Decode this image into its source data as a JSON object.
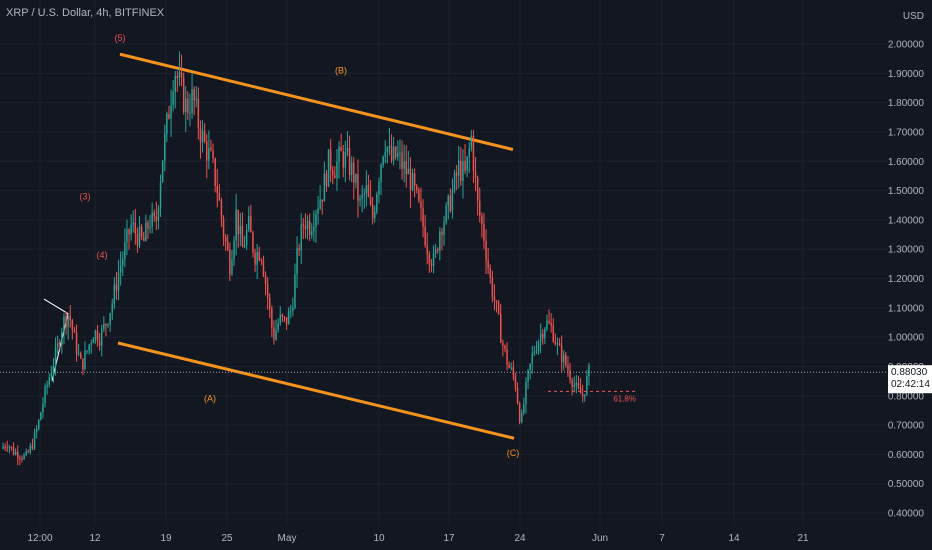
{
  "header": {
    "symbol_title": "XRP / U.S. Dollar, 4h, BITFINEX",
    "currency": "USD"
  },
  "price_badge": {
    "price": "0.88030",
    "countdown": "02:42:14"
  },
  "colors": {
    "background": "#131722",
    "grid": "#1e2230",
    "axis_text": "#b2b5be",
    "up_candle": "#26a69a",
    "down_candle": "#ef5350",
    "channel": "#f7941d",
    "wave_label_red": "#ef5350",
    "wave_label_orange": "#f7941d",
    "price_line": "#9aa0ab"
  },
  "chart_data": {
    "type": "candlestick",
    "title": "XRP / U.S. Dollar, 4h, BITFINEX",
    "ylabel": "USD",
    "ylim": [
      0.34,
      2.1
    ],
    "y_ticks": [
      "2.00000",
      "1.90000",
      "1.80000",
      "1.70000",
      "1.60000",
      "1.50000",
      "1.40000",
      "1.30000",
      "1.20000",
      "1.10000",
      "1.00000",
      "0.90000",
      "0.80000",
      "0.70000",
      "0.60000",
      "0.50000",
      "0.40000"
    ],
    "x_ticks": [
      "12:00",
      "12",
      "19",
      "25",
      "May",
      "10",
      "17",
      "24",
      "Jun",
      "7",
      "14",
      "21"
    ],
    "grid": true,
    "last_price": 0.8803,
    "price_path": [
      [
        0,
        0.62
      ],
      [
        1,
        0.64
      ],
      [
        2,
        0.61
      ],
      [
        3,
        0.6
      ],
      [
        4,
        0.59
      ],
      [
        5,
        0.63
      ],
      [
        6,
        0.7
      ],
      [
        7,
        0.8
      ],
      [
        8,
        0.88
      ],
      [
        9,
        0.95
      ],
      [
        10,
        1.05
      ],
      [
        11,
        1.08
      ],
      [
        12,
        0.98
      ],
      [
        13,
        0.9
      ],
      [
        14,
        0.96
      ],
      [
        15,
        1.02
      ],
      [
        16,
        1.0
      ],
      [
        17,
        1.05
      ],
      [
        18,
        1.12
      ],
      [
        19,
        1.22
      ],
      [
        20,
        1.3
      ],
      [
        21,
        1.38
      ],
      [
        22,
        1.35
      ],
      [
        23,
        1.32
      ],
      [
        24,
        1.4
      ],
      [
        25,
        1.38
      ],
      [
        26,
        1.6
      ],
      [
        27,
        1.75
      ],
      [
        28,
        1.92
      ],
      [
        29,
        1.85
      ],
      [
        30,
        1.78
      ],
      [
        31,
        1.82
      ],
      [
        32,
        1.72
      ],
      [
        33,
        1.65
      ],
      [
        34,
        1.6
      ],
      [
        35,
        1.5
      ],
      [
        36,
        1.35
      ],
      [
        37,
        1.25
      ],
      [
        38,
        1.42
      ],
      [
        39,
        1.3
      ],
      [
        40,
        1.38
      ],
      [
        41,
        1.28
      ],
      [
        42,
        1.3
      ],
      [
        43,
        1.15
      ],
      [
        44,
        1.0
      ],
      [
        45,
        1.06
      ],
      [
        46,
        1.05
      ],
      [
        47,
        1.1
      ],
      [
        48,
        1.3
      ],
      [
        49,
        1.4
      ],
      [
        50,
        1.38
      ],
      [
        51,
        1.45
      ],
      [
        52,
        1.5
      ],
      [
        53,
        1.6
      ],
      [
        54,
        1.58
      ],
      [
        55,
        1.62
      ],
      [
        56,
        1.6
      ],
      [
        57,
        1.55
      ],
      [
        58,
        1.45
      ],
      [
        59,
        1.5
      ],
      [
        60,
        1.4
      ],
      [
        61,
        1.55
      ],
      [
        62,
        1.68
      ],
      [
        63,
        1.6
      ],
      [
        64,
        1.62
      ],
      [
        65,
        1.58
      ],
      [
        66,
        1.55
      ],
      [
        67,
        1.48
      ],
      [
        68,
        1.4
      ],
      [
        69,
        1.3
      ],
      [
        70,
        1.25
      ],
      [
        71,
        1.38
      ],
      [
        72,
        1.42
      ],
      [
        73,
        1.5
      ],
      [
        74,
        1.58
      ],
      [
        75,
        1.55
      ],
      [
        76,
        1.68
      ],
      [
        77,
        1.45
      ],
      [
        78,
        1.35
      ],
      [
        79,
        1.2
      ],
      [
        80,
        1.1
      ],
      [
        81,
        0.98
      ],
      [
        82,
        0.9
      ],
      [
        83,
        0.86
      ],
      [
        84,
        0.7
      ],
      [
        85,
        0.85
      ],
      [
        86,
        0.95
      ],
      [
        87,
        1.0
      ],
      [
        88,
        1.05
      ],
      [
        89,
        1.03
      ],
      [
        90,
        0.96
      ],
      [
        91,
        0.92
      ],
      [
        92,
        0.87
      ],
      [
        93,
        0.82
      ],
      [
        94,
        0.8
      ],
      [
        95,
        0.88
      ]
    ],
    "channel_lines": [
      {
        "name": "upper",
        "from": [
          0.0,
          1.965
        ],
        "to": [
          1.0,
          1.64
        ]
      },
      {
        "name": "lower",
        "from": [
          0.0,
          0.98
        ],
        "to": [
          1.0,
          0.655
        ]
      }
    ],
    "fib_level": {
      "label": "61.8%",
      "value": 0.815
    },
    "annotations": [
      {
        "text": "(5)",
        "price": 2.02,
        "at": 0.205,
        "color": "red"
      },
      {
        "text": "(3)",
        "price": 1.48,
        "at": 0.16,
        "color": "red"
      },
      {
        "text": "(4)",
        "price": 1.28,
        "at": 0.18,
        "color": "red"
      },
      {
        "text": "(B)",
        "price": 1.91,
        "at": 0.57,
        "color": "orange"
      },
      {
        "text": "(A)",
        "price": 0.79,
        "at": 0.37,
        "color": "orange"
      },
      {
        "text": "(C)",
        "price": 0.605,
        "at": 0.92,
        "color": "orange"
      }
    ]
  }
}
